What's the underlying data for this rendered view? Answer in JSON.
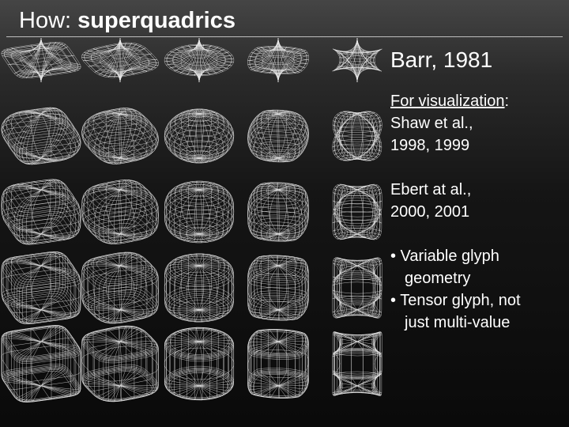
{
  "title": {
    "prefix": "How: ",
    "bold": "superquadrics"
  },
  "side": {
    "heading": "Barr, 1981",
    "vis_label": "For visualization",
    "vis_colon": ":",
    "shaw_line1": "Shaw et al.,",
    "shaw_line2": "1998, 1999",
    "ebert_line1": "Ebert at al.,",
    "ebert_line2": "2000, 2001",
    "bullet1_line1": "• Variable glyph",
    "bullet1_line2": "geometry",
    "bullet2_line1": "• Tensor glyph, not",
    "bullet2_line2": "just multi-value"
  },
  "grid": {
    "rows": 5,
    "cols": 5,
    "line_color": "#e8e8e8",
    "row_exponents": [
      3.5,
      1.0,
      0.6,
      0.3,
      0.12
    ],
    "col_exponents": [
      0.35,
      0.6,
      1.0,
      1.4,
      3.0
    ]
  }
}
